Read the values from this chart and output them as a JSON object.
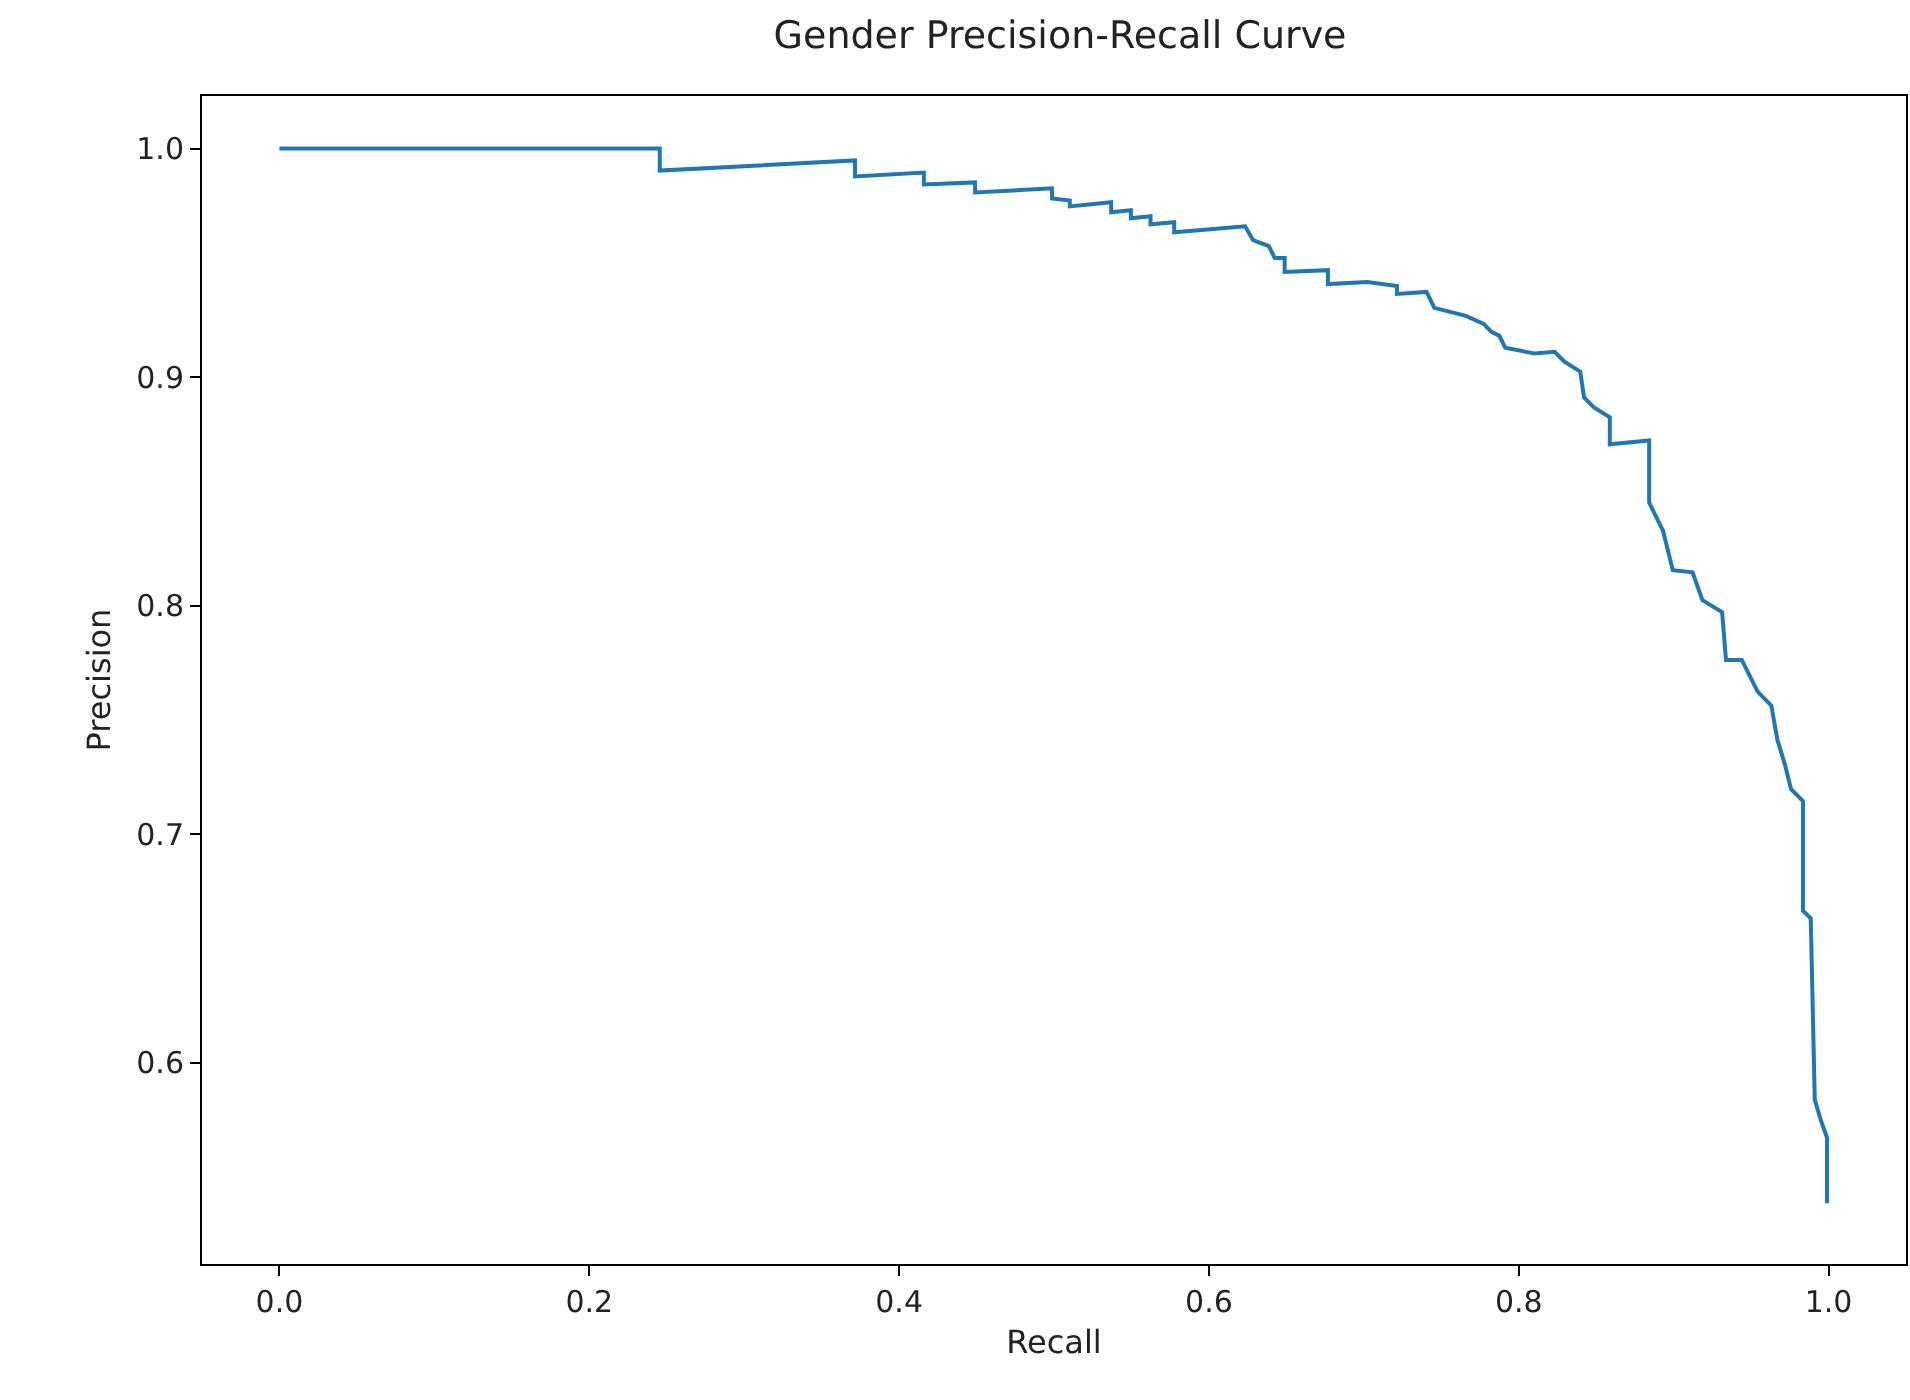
{
  "chart_data": {
    "type": "line",
    "title": "Gender Precision-Recall Curve",
    "xlabel": "Recall",
    "ylabel": "Precision",
    "xlim": [
      -0.05,
      1.05
    ],
    "ylim": [
      0.512,
      1.023
    ],
    "xticks": [
      {
        "value": 0,
        "label": "0.0"
      },
      {
        "value": 0.2,
        "label": "0.2"
      },
      {
        "value": 0.4,
        "label": "0.4"
      },
      {
        "value": 0.6,
        "label": "0.6"
      },
      {
        "value": 0.8,
        "label": "0.8"
      },
      {
        "value": 1,
        "label": "1.0"
      }
    ],
    "yticks": [
      {
        "value": 0.6,
        "label": "0.6"
      },
      {
        "value": 0.7,
        "label": "0.7"
      },
      {
        "value": 0.8,
        "label": "0.8"
      },
      {
        "value": 0.9,
        "label": "0.9"
      },
      {
        "value": 1,
        "label": "1.0"
      }
    ],
    "series": [
      {
        "color": "#1f77b4",
        "x": [
          0.0,
          0.2455,
          0.2455,
          0.3715,
          0.3715,
          0.416,
          0.416,
          0.4491,
          0.4491,
          0.4987,
          0.4987,
          0.5102,
          0.5102,
          0.5369,
          0.5369,
          0.5496,
          0.5496,
          0.5623,
          0.5623,
          0.5776,
          0.5776,
          0.6234,
          0.6285,
          0.6387,
          0.6425,
          0.6489,
          0.6489,
          0.6768,
          0.6768,
          0.7023,
          0.7214,
          0.7214,
          0.7405,
          0.7455,
          0.7659,
          0.7774,
          0.7824,
          0.7875,
          0.7913,
          0.8104,
          0.8232,
          0.8295,
          0.8397,
          0.8422,
          0.8486,
          0.8588,
          0.8588,
          0.8842,
          0.8842,
          0.8931,
          0.8995,
          0.9122,
          0.9186,
          0.9313,
          0.9338,
          0.944,
          0.9542,
          0.9631,
          0.9669,
          0.972,
          0.9758,
          0.9835,
          0.9835,
          0.9885,
          0.9911,
          0.9949,
          0.999,
          0.999
        ],
        "values": [
          1.0,
          1.0,
          0.9904,
          0.9948,
          0.9878,
          0.9895,
          0.9843,
          0.9852,
          0.9808,
          0.9826,
          0.9782,
          0.9773,
          0.9747,
          0.9765,
          0.9721,
          0.973,
          0.9695,
          0.9704,
          0.9669,
          0.9678,
          0.9634,
          0.966,
          0.9599,
          0.9573,
          0.9521,
          0.9521,
          0.946,
          0.9468,
          0.9407,
          0.9416,
          0.9399,
          0.9364,
          0.9373,
          0.9303,
          0.9268,
          0.9233,
          0.9198,
          0.9181,
          0.9129,
          0.9103,
          0.9111,
          0.9068,
          0.9024,
          0.8911,
          0.8867,
          0.8824,
          0.8706,
          0.8723,
          0.8451,
          0.8329,
          0.8155,
          0.8146,
          0.8024,
          0.7972,
          0.7763,
          0.7763,
          0.7624,
          0.7563,
          0.7415,
          0.7301,
          0.7197,
          0.7145,
          0.6666,
          0.6632,
          0.5839,
          0.5752,
          0.5673,
          0.5386
        ]
      }
    ]
  }
}
